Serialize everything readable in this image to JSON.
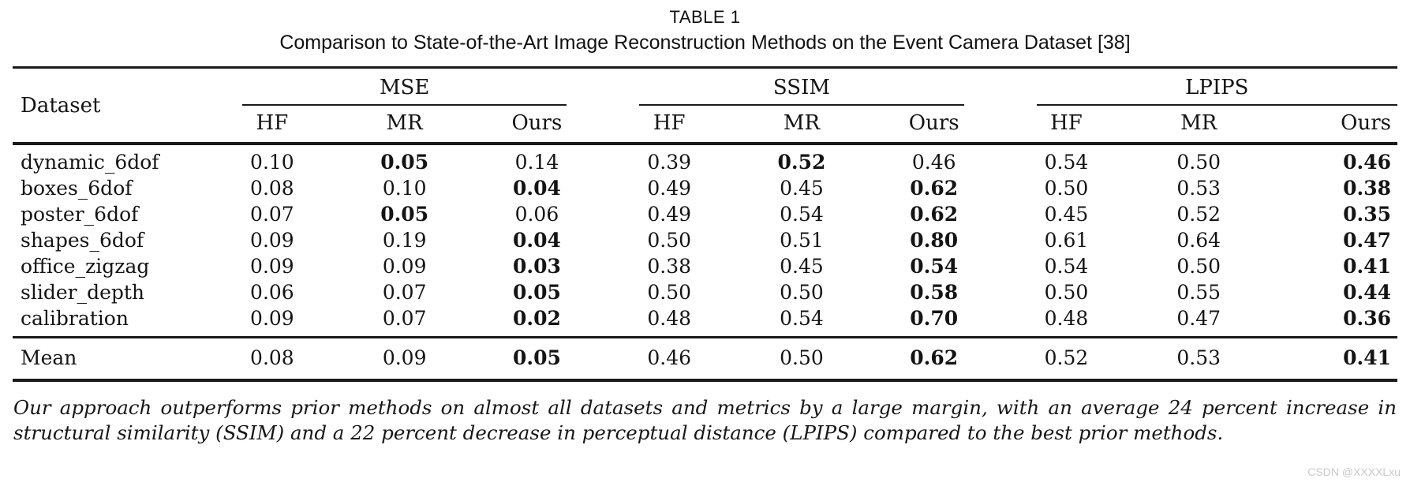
{
  "caption": {
    "line1": "TABLE 1",
    "line2": "Comparison to State-of-the-Art Image Reconstruction Methods on the Event Camera Dataset [38]"
  },
  "table": {
    "corner_header": "Dataset",
    "groups": [
      {
        "label": "MSE"
      },
      {
        "label": "SSIM"
      },
      {
        "label": "LPIPS"
      }
    ],
    "subheaders": [
      "HF",
      "MR",
      "Ours",
      "HF",
      "MR",
      "Ours",
      "HF",
      "MR",
      "Ours"
    ],
    "rows": [
      {
        "dataset": "dynamic_6dof",
        "cells": [
          {
            "v": "0.10",
            "b": false
          },
          {
            "v": "0.05",
            "b": true
          },
          {
            "v": "0.14",
            "b": false
          },
          {
            "v": "0.39",
            "b": false
          },
          {
            "v": "0.52",
            "b": true
          },
          {
            "v": "0.46",
            "b": false
          },
          {
            "v": "0.54",
            "b": false
          },
          {
            "v": "0.50",
            "b": false
          },
          {
            "v": "0.46",
            "b": true
          }
        ]
      },
      {
        "dataset": "boxes_6dof",
        "cells": [
          {
            "v": "0.08",
            "b": false
          },
          {
            "v": "0.10",
            "b": false
          },
          {
            "v": "0.04",
            "b": true
          },
          {
            "v": "0.49",
            "b": false
          },
          {
            "v": "0.45",
            "b": false
          },
          {
            "v": "0.62",
            "b": true
          },
          {
            "v": "0.50",
            "b": false
          },
          {
            "v": "0.53",
            "b": false
          },
          {
            "v": "0.38",
            "b": true
          }
        ]
      },
      {
        "dataset": "poster_6dof",
        "cells": [
          {
            "v": "0.07",
            "b": false
          },
          {
            "v": "0.05",
            "b": true
          },
          {
            "v": "0.06",
            "b": false
          },
          {
            "v": "0.49",
            "b": false
          },
          {
            "v": "0.54",
            "b": false
          },
          {
            "v": "0.62",
            "b": true
          },
          {
            "v": "0.45",
            "b": false
          },
          {
            "v": "0.52",
            "b": false
          },
          {
            "v": "0.35",
            "b": true
          }
        ]
      },
      {
        "dataset": "shapes_6dof",
        "cells": [
          {
            "v": "0.09",
            "b": false
          },
          {
            "v": "0.19",
            "b": false
          },
          {
            "v": "0.04",
            "b": true
          },
          {
            "v": "0.50",
            "b": false
          },
          {
            "v": "0.51",
            "b": false
          },
          {
            "v": "0.80",
            "b": true
          },
          {
            "v": "0.61",
            "b": false
          },
          {
            "v": "0.64",
            "b": false
          },
          {
            "v": "0.47",
            "b": true
          }
        ]
      },
      {
        "dataset": "office_zigzag",
        "cells": [
          {
            "v": "0.09",
            "b": false
          },
          {
            "v": "0.09",
            "b": false
          },
          {
            "v": "0.03",
            "b": true
          },
          {
            "v": "0.38",
            "b": false
          },
          {
            "v": "0.45",
            "b": false
          },
          {
            "v": "0.54",
            "b": true
          },
          {
            "v": "0.54",
            "b": false
          },
          {
            "v": "0.50",
            "b": false
          },
          {
            "v": "0.41",
            "b": true
          }
        ]
      },
      {
        "dataset": "slider_depth",
        "cells": [
          {
            "v": "0.06",
            "b": false
          },
          {
            "v": "0.07",
            "b": false
          },
          {
            "v": "0.05",
            "b": true
          },
          {
            "v": "0.50",
            "b": false
          },
          {
            "v": "0.50",
            "b": false
          },
          {
            "v": "0.58",
            "b": true
          },
          {
            "v": "0.50",
            "b": false
          },
          {
            "v": "0.55",
            "b": false
          },
          {
            "v": "0.44",
            "b": true
          }
        ]
      },
      {
        "dataset": "calibration",
        "cells": [
          {
            "v": "0.09",
            "b": false
          },
          {
            "v": "0.07",
            "b": false
          },
          {
            "v": "0.02",
            "b": true
          },
          {
            "v": "0.48",
            "b": false
          },
          {
            "v": "0.54",
            "b": false
          },
          {
            "v": "0.70",
            "b": true
          },
          {
            "v": "0.48",
            "b": false
          },
          {
            "v": "0.47",
            "b": false
          },
          {
            "v": "0.36",
            "b": true
          }
        ]
      }
    ],
    "mean_row": {
      "dataset": "Mean",
      "cells": [
        {
          "v": "0.08",
          "b": false
        },
        {
          "v": "0.09",
          "b": false
        },
        {
          "v": "0.05",
          "b": true
        },
        {
          "v": "0.46",
          "b": false
        },
        {
          "v": "0.50",
          "b": false
        },
        {
          "v": "0.62",
          "b": true
        },
        {
          "v": "0.52",
          "b": false
        },
        {
          "v": "0.53",
          "b": false
        },
        {
          "v": "0.41",
          "b": true
        }
      ]
    }
  },
  "footnote": "Our approach outperforms prior methods on almost all datasets and metrics by a large margin, with an average 24 percent increase in structural similarity (SSIM) and a 22 percent decrease in perceptual distance (LPIPS) compared to the best prior methods.",
  "watermark": "CSDN @XXXXLxu",
  "colors": {
    "text": "#141414",
    "rule": "#1a1a1a",
    "watermark": "#c9c9c9"
  }
}
